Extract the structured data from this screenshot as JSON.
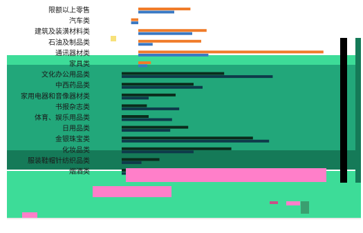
{
  "colors": {
    "background": "#ffffff",
    "band_green_bright": "#3ddc98",
    "band_green_mid": "#22a77a",
    "band_green_dark": "#157a58",
    "series_orange": "#f07c2a",
    "series_blue": "#3a78c2",
    "series_dark": "#0b2b1c",
    "glitch_pink": "#ff7fc9",
    "black": "#000000"
  },
  "chart_data": {
    "type": "bar",
    "orientation": "horizontal",
    "title": "",
    "xlabel": "",
    "ylabel": "",
    "grid": false,
    "legend": "bottom",
    "categories": [
      "限额以上零售",
      "汽车类",
      "建筑及装潢材料类",
      "石油及制品类",
      "通讯器材类",
      "家具类",
      "文化办公用品类",
      "中西药品类",
      "家用电器和音像器材类",
      "书报杂志类",
      "体育、娱乐用品类",
      "日用品类",
      "金银珠宝类",
      "化妆品类",
      "服装鞋帽针纺织品类",
      "烟酒类"
    ],
    "series": [
      {
        "name": "",
        "values": [
          29,
          -4,
          38,
          35,
          103,
          7,
          57,
          40,
          30,
          14,
          15,
          37,
          73,
          61,
          21,
          71
        ]
      },
      {
        "name": "",
        "values": [
          20,
          -4,
          30,
          8,
          39,
          5,
          84,
          45,
          15,
          32,
          28,
          27,
          82,
          40,
          11,
          55
        ]
      }
    ],
    "xlim": [
      -15,
      135
    ]
  }
}
